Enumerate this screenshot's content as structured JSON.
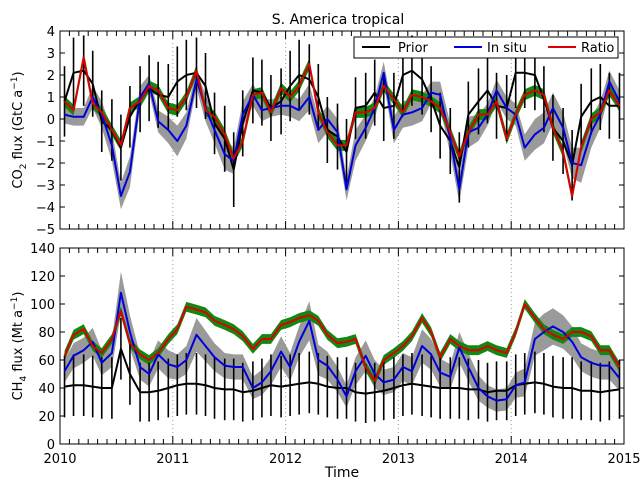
{
  "chart_data": [
    {
      "type": "line",
      "title": "S. America tropical",
      "ylabel": "CO₂ flux (GtC a⁻¹)",
      "ylabel_main": "CO",
      "ylabel_sub": "2",
      "ylabel_rest": " flux (GtC a",
      "ylabel_sup": "−1",
      "ylabel_end": ")",
      "xlim": [
        2010,
        2015
      ],
      "ylim": [
        -5,
        4
      ],
      "yticks": [
        "−5",
        "−4",
        "−3",
        "−2",
        "−1",
        "0",
        "1",
        "2",
        "3",
        "4"
      ],
      "grid": "vertical dotted lines at each year",
      "legend_position": "top-right",
      "x": [
        2010.04,
        2010.12,
        2010.21,
        2010.29,
        2010.37,
        2010.46,
        2010.54,
        2010.62,
        2010.71,
        2010.79,
        2010.87,
        2010.96,
        2011.04,
        2011.12,
        2011.21,
        2011.29,
        2011.37,
        2011.46,
        2011.54,
        2011.62,
        2011.71,
        2011.79,
        2011.87,
        2011.96,
        2012.04,
        2012.12,
        2012.21,
        2012.29,
        2012.37,
        2012.46,
        2012.54,
        2012.62,
        2012.71,
        2012.79,
        2012.87,
        2012.96,
        2013.04,
        2013.12,
        2013.21,
        2013.29,
        2013.37,
        2013.46,
        2013.54,
        2013.62,
        2013.71,
        2013.79,
        2013.87,
        2013.96,
        2014.04,
        2014.12,
        2014.21,
        2014.29,
        2014.37,
        2014.46,
        2014.54,
        2014.62,
        2014.71,
        2014.79,
        2014.87,
        2014.96
      ],
      "series": [
        {
          "name": "Prior",
          "color": "#000000",
          "values": [
            0.8,
            2.1,
            2.2,
            1.6,
            -0.1,
            -0.5,
            -1.3,
            0.1,
            0.9,
            1.4,
            1.1,
            1.0,
            1.7,
            2.0,
            2.1,
            1.5,
            -0.2,
            -0.9,
            -2.3,
            -0.2,
            1.3,
            1.2,
            0.5,
            0.8,
            1.5,
            2.0,
            1.8,
            1.0,
            -0.5,
            -0.8,
            -1.5,
            0.5,
            0.6,
            1.2,
            0.5,
            0.6,
            2.0,
            2.2,
            1.8,
            0.9,
            -0.3,
            -1.0,
            -2.2,
            0.2,
            0.8,
            1.3,
            0.6,
            0.5,
            2.1,
            2.1,
            2.0,
            0.9,
            -0.4,
            -1.0,
            -2.1,
            0.1,
            0.8,
            1.0,
            0.6,
            0.6
          ],
          "err": [
            1.6,
            1.6,
            1.6,
            1.5,
            1.4,
            1.4,
            1.5,
            1.4,
            1.5,
            1.5,
            1.5,
            1.5,
            1.6,
            1.6,
            1.6,
            1.5,
            1.4,
            1.5,
            1.7,
            1.5,
            1.5,
            1.5,
            1.5,
            1.5,
            1.6,
            1.6,
            1.6,
            1.5,
            1.5,
            1.5,
            1.5,
            1.4,
            1.5,
            1.5,
            1.5,
            1.5,
            1.6,
            1.6,
            1.6,
            1.5,
            1.5,
            1.5,
            1.6,
            1.5,
            1.5,
            1.5,
            1.5,
            1.5,
            1.6,
            1.6,
            1.6,
            1.5,
            1.5,
            1.5,
            1.6,
            1.5,
            1.5,
            1.5,
            1.5,
            1.5
          ]
        },
        {
          "name": "In situ",
          "color": "#0000dd",
          "values": [
            0.2,
            0.1,
            0.1,
            1.0,
            0.2,
            -1.2,
            -3.5,
            -2.4,
            1.0,
            1.6,
            -0.1,
            -0.5,
            -1.0,
            -0.3,
            1.8,
            0.5,
            -0.5,
            -1.6,
            -1.9,
            0.2,
            1.1,
            0.4,
            0.5,
            0.6,
            0.6,
            0.4,
            1.0,
            -0.5,
            0.0,
            -0.6,
            -3.2,
            -1.2,
            -0.4,
            0.5,
            2.1,
            -0.5,
            0.2,
            0.3,
            0.5,
            1.2,
            1.1,
            -0.9,
            -3.2,
            -0.6,
            -0.4,
            0.2,
            1.3,
            0.5,
            0.2,
            -1.3,
            -0.7,
            -0.4,
            0.5,
            -0.4,
            -2.0,
            -2.1,
            -0.6,
            0.2,
            1.7,
            0.8
          ],
          "band_width": [
            0.4,
            0.4,
            0.4,
            0.5,
            0.6,
            0.7,
            0.6,
            0.7,
            0.5,
            0.4,
            0.5,
            0.6,
            0.7,
            0.6,
            0.4,
            0.6,
            0.6,
            0.7,
            0.6,
            0.6,
            0.5,
            0.5,
            0.4,
            0.4,
            0.5,
            0.5,
            0.6,
            0.6,
            0.6,
            0.6,
            0.5,
            0.7,
            0.6,
            0.5,
            0.5,
            0.6,
            0.6,
            0.6,
            0.6,
            0.5,
            0.6,
            0.7,
            0.6,
            0.7,
            0.6,
            0.5,
            0.5,
            0.5,
            0.5,
            0.6,
            0.7,
            0.7,
            0.7,
            0.7,
            0.7,
            0.8,
            0.7,
            0.6,
            0.5,
            0.5
          ]
        },
        {
          "name": "Ratio",
          "color": "#dd0000",
          "values": [
            0.8,
            0.4,
            2.8,
            0.7,
            0.3,
            -0.5,
            -1.2,
            0.5,
            0.8,
            1.5,
            1.3,
            0.5,
            0.4,
            1.0,
            2.2,
            0.4,
            0.1,
            -0.7,
            -1.8,
            -1.0,
            1.1,
            1.2,
            0.3,
            1.4,
            1.0,
            1.5,
            2.5,
            0.3,
            -0.6,
            -1.2,
            -1.2,
            0.3,
            0.3,
            0.5,
            1.5,
            0.9,
            0.3,
            1.1,
            1.0,
            0.8,
            0.5,
            -0.6,
            -1.7,
            -0.6,
            0.2,
            0.2,
            0.8,
            -0.9,
            0.2,
            1.1,
            1.3,
            1.1,
            -0.4,
            -1.5,
            -3.5,
            -1.3,
            0.0,
            0.3,
            1.3,
            0.6
          ]
        }
      ]
    },
    {
      "type": "line",
      "ylabel": "CH₄ flux (Mt a⁻¹)",
      "ylabel_main": "CH",
      "ylabel_sub": "4",
      "ylabel_rest": " flux (Mt a",
      "ylabel_sup": "−1",
      "ylabel_end": ")",
      "xlabel": "Time",
      "xlim": [
        2010,
        2015
      ],
      "ylim": [
        0,
        140
      ],
      "yticks": [
        "0",
        "20",
        "40",
        "60",
        "80",
        "100",
        "120",
        "140"
      ],
      "xticks": [
        "2010",
        "2011",
        "2012",
        "2013",
        "2014",
        "2015"
      ],
      "grid": "vertical dotted lines at each year",
      "x": [
        2010.04,
        2010.12,
        2010.21,
        2010.29,
        2010.37,
        2010.46,
        2010.54,
        2010.62,
        2010.71,
        2010.79,
        2010.87,
        2010.96,
        2011.04,
        2011.12,
        2011.21,
        2011.29,
        2011.37,
        2011.46,
        2011.54,
        2011.62,
        2011.71,
        2011.79,
        2011.87,
        2011.96,
        2012.04,
        2012.12,
        2012.21,
        2012.29,
        2012.37,
        2012.46,
        2012.54,
        2012.62,
        2012.71,
        2012.79,
        2012.87,
        2012.96,
        2013.04,
        2013.12,
        2013.21,
        2013.29,
        2013.37,
        2013.46,
        2013.54,
        2013.62,
        2013.71,
        2013.79,
        2013.87,
        2013.96,
        2014.04,
        2014.12,
        2014.21,
        2014.29,
        2014.37,
        2014.46,
        2014.54,
        2014.62,
        2014.71,
        2014.79,
        2014.87,
        2014.96
      ],
      "series": [
        {
          "name": "Prior",
          "color": "#000000",
          "values": [
            41,
            42,
            42,
            41,
            40,
            40,
            68,
            50,
            37,
            37,
            38,
            40,
            42,
            43,
            43,
            42,
            40,
            39,
            39,
            37,
            38,
            40,
            42,
            41,
            42,
            43,
            44,
            43,
            41,
            40,
            40,
            37,
            36,
            37,
            38,
            40,
            42,
            43,
            42,
            41,
            40,
            40,
            40,
            39,
            39,
            37,
            38,
            38,
            42,
            43,
            44,
            43,
            41,
            40,
            40,
            38,
            38,
            37,
            38,
            39
          ],
          "err": [
            22,
            22,
            22,
            22,
            22,
            22,
            22,
            22,
            21,
            21,
            21,
            21,
            22,
            22,
            22,
            22,
            22,
            22,
            22,
            21,
            21,
            21,
            22,
            22,
            22,
            22,
            22,
            22,
            22,
            22,
            22,
            21,
            21,
            21,
            21,
            22,
            22,
            22,
            22,
            22,
            22,
            22,
            22,
            22,
            21,
            21,
            21,
            21,
            22,
            22,
            22,
            22,
            22,
            22,
            22,
            21,
            21,
            21,
            21,
            21
          ]
        },
        {
          "name": "In situ",
          "color": "#0000dd",
          "values": [
            52,
            63,
            67,
            73,
            58,
            65,
            108,
            80,
            55,
            50,
            64,
            57,
            55,
            60,
            78,
            70,
            62,
            56,
            55,
            55,
            40,
            44,
            52,
            66,
            55,
            73,
            88,
            60,
            56,
            46,
            34,
            52,
            63,
            50,
            44,
            46,
            55,
            52,
            70,
            64,
            51,
            48,
            69,
            55,
            40,
            34,
            31,
            32,
            42,
            44,
            75,
            80,
            84,
            80,
            73,
            62,
            58,
            56,
            56,
            47
          ],
          "band_width": [
            8,
            9,
            9,
            10,
            9,
            10,
            15,
            12,
            9,
            9,
            10,
            10,
            9,
            10,
            12,
            11,
            10,
            9,
            9,
            9,
            8,
            9,
            10,
            11,
            10,
            11,
            14,
            11,
            10,
            9,
            8,
            10,
            11,
            10,
            9,
            9,
            10,
            10,
            12,
            11,
            10,
            9,
            11,
            10,
            9,
            8,
            8,
            8,
            9,
            10,
            12,
            13,
            13,
            12,
            11,
            10,
            10,
            10,
            10,
            9
          ]
        },
        {
          "name": "Ratio",
          "color": "#dd0000",
          "values": [
            63,
            78,
            82,
            70,
            65,
            75,
            95,
            72,
            64,
            60,
            65,
            75,
            82,
            98,
            96,
            94,
            88,
            85,
            82,
            77,
            68,
            75,
            75,
            85,
            87,
            90,
            92,
            88,
            78,
            72,
            73,
            75,
            55,
            45,
            60,
            65,
            70,
            77,
            90,
            80,
            62,
            75,
            70,
            67,
            67,
            70,
            67,
            65,
            80,
            100,
            90,
            82,
            78,
            75,
            80,
            80,
            77,
            67,
            67,
            55
          ]
        }
      ]
    }
  ]
}
